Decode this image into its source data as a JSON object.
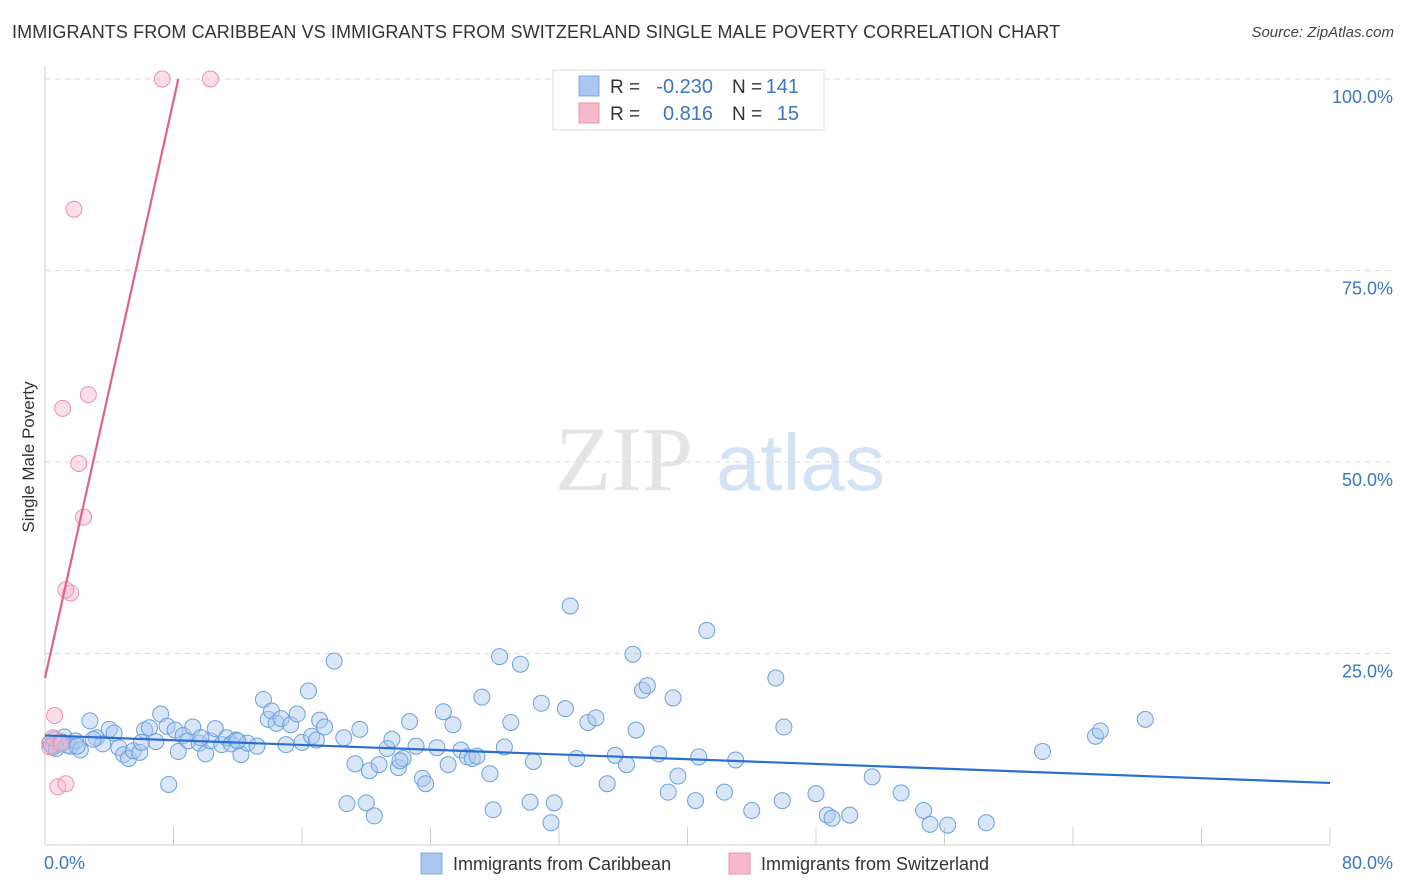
{
  "title": "IMMIGRANTS FROM CARIBBEAN VS IMMIGRANTS FROM SWITZERLAND SINGLE MALE POVERTY CORRELATION CHART",
  "source": "Source: ZipAtlas.com",
  "watermark": {
    "zip": "ZIP",
    "atlas": "atlas"
  },
  "legend_box": {
    "rows": [
      {
        "r_label": "R =",
        "r_value": "-0.230",
        "n_label": "N =",
        "n_value": "141",
        "color": "#aac8ef"
      },
      {
        "r_label": "R =",
        "r_value": "0.816",
        "n_label": "N =",
        "n_value": "15",
        "color": "#f6b8cb"
      }
    ]
  },
  "chart_data": {
    "type": "scatter",
    "title": "IMMIGRANTS FROM CARIBBEAN VS IMMIGRANTS FROM SWITZERLAND SINGLE MALE POVERTY CORRELATION CHART",
    "xlabel": "",
    "ylabel": "Single Male Poverty",
    "xlim": [
      0,
      80
    ],
    "ylim": [
      0,
      100
    ],
    "x_tick_labels": [
      "0.0%",
      "80.0%"
    ],
    "y_tick_labels": [
      "25.0%",
      "50.0%",
      "75.0%",
      "100.0%"
    ],
    "y_ticks": [
      25,
      50,
      75,
      100
    ],
    "grid": true,
    "legend_position": "bottom",
    "colors": {
      "caribbean": "#6aa0e0",
      "switzerland": "#ee8fae",
      "caribbean_line": "#2a6fd0",
      "switzerland_line": "#e0608e"
    },
    "series": [
      {
        "name": "Immigrants from Caribbean",
        "trend": {
          "x": [
            0,
            80
          ],
          "y": [
            14.3,
            8.1
          ]
        },
        "points": [
          [
            0.3,
            13.3
          ],
          [
            0.5,
            12.8
          ],
          [
            0.6,
            13.8
          ],
          [
            0.8,
            13.1
          ],
          [
            1.0,
            13.5
          ],
          [
            1.2,
            14.1
          ],
          [
            1.4,
            13.0
          ],
          [
            1.6,
            12.9
          ],
          [
            1.9,
            13.6
          ],
          [
            2.2,
            12.4
          ],
          [
            2.8,
            16.2
          ],
          [
            3.2,
            14.0
          ],
          [
            3.6,
            13.2
          ],
          [
            4.0,
            15.1
          ],
          [
            4.3,
            14.6
          ],
          [
            4.6,
            12.7
          ],
          [
            4.9,
            11.8
          ],
          [
            5.2,
            11.3
          ],
          [
            5.5,
            12.3
          ],
          [
            5.9,
            12.1
          ],
          [
            6.2,
            15.0
          ],
          [
            6.5,
            15.3
          ],
          [
            6.9,
            13.5
          ],
          [
            7.2,
            17.1
          ],
          [
            7.6,
            15.5
          ],
          [
            7.7,
            7.9
          ],
          [
            8.1,
            15.0
          ],
          [
            8.3,
            12.2
          ],
          [
            8.6,
            14.3
          ],
          [
            8.9,
            13.6
          ],
          [
            9.2,
            15.4
          ],
          [
            9.6,
            13.3
          ],
          [
            10.0,
            11.9
          ],
          [
            10.3,
            13.6
          ],
          [
            10.6,
            15.2
          ],
          [
            11.0,
            13.1
          ],
          [
            11.3,
            14.0
          ],
          [
            11.6,
            13.2
          ],
          [
            11.9,
            13.7
          ],
          [
            12.2,
            11.8
          ],
          [
            12.6,
            13.3
          ],
          [
            13.2,
            12.9
          ],
          [
            13.6,
            19.0
          ],
          [
            13.9,
            16.4
          ],
          [
            14.1,
            17.5
          ],
          [
            14.4,
            15.9
          ],
          [
            14.7,
            16.5
          ],
          [
            15.0,
            13.1
          ],
          [
            15.3,
            15.7
          ],
          [
            15.7,
            17.1
          ],
          [
            16.0,
            13.4
          ],
          [
            16.4,
            20.1
          ],
          [
            16.6,
            14.2
          ],
          [
            16.9,
            13.7
          ],
          [
            17.1,
            16.3
          ],
          [
            17.4,
            15.4
          ],
          [
            18.0,
            24.0
          ],
          [
            18.6,
            14.0
          ],
          [
            18.8,
            5.4
          ],
          [
            19.3,
            10.6
          ],
          [
            19.6,
            15.1
          ],
          [
            20.0,
            5.5
          ],
          [
            20.2,
            9.7
          ],
          [
            20.5,
            3.8
          ],
          [
            20.8,
            10.5
          ],
          [
            21.3,
            12.6
          ],
          [
            21.6,
            13.8
          ],
          [
            22.0,
            10.1
          ],
          [
            22.3,
            11.3
          ],
          [
            22.7,
            16.1
          ],
          [
            23.1,
            12.9
          ],
          [
            23.5,
            8.7
          ],
          [
            23.7,
            8.0
          ],
          [
            24.4,
            12.7
          ],
          [
            24.8,
            17.4
          ],
          [
            25.1,
            10.5
          ],
          [
            25.4,
            15.7
          ],
          [
            25.9,
            12.4
          ],
          [
            26.3,
            11.5
          ],
          [
            26.6,
            11.3
          ],
          [
            26.9,
            11.6
          ],
          [
            27.2,
            19.3
          ],
          [
            27.7,
            9.3
          ],
          [
            27.9,
            4.6
          ],
          [
            28.3,
            24.6
          ],
          [
            28.6,
            12.8
          ],
          [
            29.0,
            16.0
          ],
          [
            29.6,
            23.6
          ],
          [
            30.2,
            5.6
          ],
          [
            30.4,
            10.9
          ],
          [
            30.9,
            18.5
          ],
          [
            31.5,
            2.9
          ],
          [
            31.7,
            5.5
          ],
          [
            32.4,
            17.8
          ],
          [
            32.7,
            31.2
          ],
          [
            33.1,
            11.3
          ],
          [
            33.8,
            16.0
          ],
          [
            34.3,
            16.6
          ],
          [
            35.0,
            8.0
          ],
          [
            35.5,
            11.7
          ],
          [
            36.2,
            10.5
          ],
          [
            36.6,
            24.9
          ],
          [
            36.8,
            15.0
          ],
          [
            37.2,
            20.2
          ],
          [
            37.5,
            20.8
          ],
          [
            38.2,
            11.9
          ],
          [
            38.8,
            6.9
          ],
          [
            39.1,
            19.2
          ],
          [
            39.4,
            9.0
          ],
          [
            40.5,
            5.8
          ],
          [
            40.7,
            11.5
          ],
          [
            41.2,
            28.0
          ],
          [
            42.3,
            6.9
          ],
          [
            43.0,
            11.1
          ],
          [
            44.0,
            4.5
          ],
          [
            45.5,
            21.8
          ],
          [
            45.9,
            5.8
          ],
          [
            46.0,
            15.4
          ],
          [
            48.0,
            6.7
          ],
          [
            48.7,
            3.9
          ],
          [
            49.0,
            3.5
          ],
          [
            50.1,
            3.9
          ],
          [
            51.5,
            8.9
          ],
          [
            53.3,
            6.8
          ],
          [
            54.7,
            4.5
          ],
          [
            55.1,
            2.7
          ],
          [
            56.2,
            2.6
          ],
          [
            58.6,
            2.9
          ],
          [
            62.1,
            12.2
          ],
          [
            65.4,
            14.2
          ],
          [
            65.7,
            14.9
          ],
          [
            68.5,
            16.4
          ],
          [
            0.4,
            13.0
          ],
          [
            0.7,
            12.6
          ],
          [
            1.1,
            13.4
          ],
          [
            2.0,
            12.9
          ],
          [
            3.0,
            13.8
          ],
          [
            6.0,
            13.4
          ],
          [
            9.7,
            14.0
          ],
          [
            12.0,
            13.6
          ],
          [
            22.1,
            11.0
          ]
        ]
      },
      {
        "name": "Immigrants from Switzerland",
        "trend": {
          "x": [
            0,
            8.3
          ],
          "y": [
            21.8,
            100
          ]
        },
        "points": [
          [
            0.3,
            12.8
          ],
          [
            0.5,
            14.0
          ],
          [
            0.6,
            16.9
          ],
          [
            0.8,
            7.6
          ],
          [
            1.0,
            13.2
          ],
          [
            1.1,
            57.0
          ],
          [
            1.3,
            8.0
          ],
          [
            1.8,
            83.0
          ],
          [
            1.6,
            32.9
          ],
          [
            1.3,
            33.3
          ],
          [
            2.1,
            49.8
          ],
          [
            2.4,
            42.8
          ],
          [
            2.7,
            58.8
          ],
          [
            7.3,
            100.0
          ],
          [
            10.3,
            100.0
          ]
        ]
      }
    ]
  },
  "bottom_legend": [
    {
      "label": "Immigrants from Caribbean",
      "color": "#aac8ef"
    },
    {
      "label": "Immigrants from Switzerland",
      "color": "#f6b8cb"
    }
  ]
}
